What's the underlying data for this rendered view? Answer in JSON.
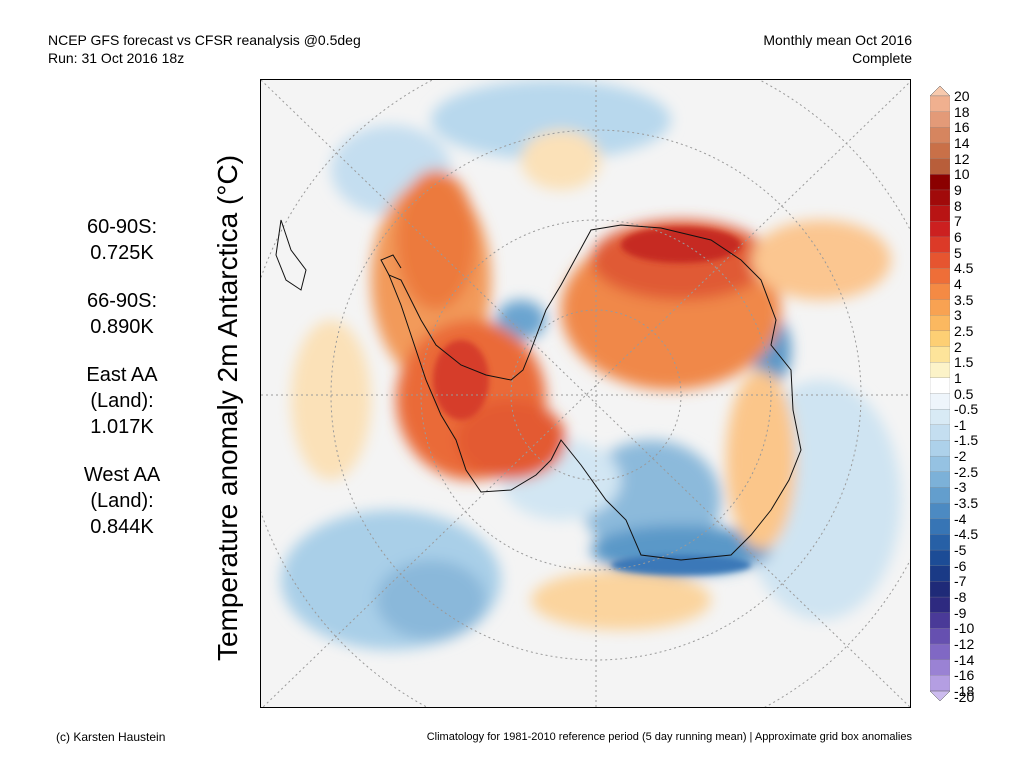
{
  "header": {
    "title": "NCEP GFS forecast vs CFSR reanalysis @0.5deg",
    "run": "Run: 31 Oct 2016 18z",
    "period": "Monthly mean Oct 2016",
    "status": "Complete"
  },
  "stats": [
    {
      "lines": [
        "60-90S:",
        "0.725K"
      ]
    },
    {
      "lines": [
        "66-90S:",
        "0.890K"
      ]
    },
    {
      "lines": [
        "East AA",
        "(Land):",
        "1.017K"
      ]
    },
    {
      "lines": [
        "West AA",
        "(Land):",
        "0.844K"
      ]
    }
  ],
  "map": {
    "ylabel": "Temperature anomaly 2m Antarctica (°C)",
    "projection": "south polar stereographic"
  },
  "colorbar": {
    "labels": [
      "20",
      "18",
      "16",
      "14",
      "12",
      "10",
      "9",
      "8",
      "7",
      "6",
      "5",
      "4.5",
      "4",
      "3.5",
      "3",
      "2.5",
      "2",
      "1.5",
      "1",
      "0.5",
      "-0.5",
      "-1",
      "-1.5",
      "-2",
      "-2.5",
      "-3",
      "-3.5",
      "-4",
      "-4.5",
      "-5",
      "-6",
      "-7",
      "-8",
      "-9",
      "-10",
      "-12",
      "-14",
      "-16",
      "-18",
      "-20"
    ],
    "colors": [
      "#f7c9ad",
      "#f0b08f",
      "#e39a78",
      "#d6855f",
      "#c97048",
      "#b85e3a",
      "#8b0000",
      "#a10a0a",
      "#b81414",
      "#cc2020",
      "#dc3a28",
      "#e65530",
      "#ee6e38",
      "#f48a44",
      "#f8a252",
      "#fbb860",
      "#fdcf74",
      "#fde49a",
      "#fcf3c8",
      "#ffffff",
      "#eef5fb",
      "#d8eaf5",
      "#c4def0",
      "#add1ea",
      "#95c2e2",
      "#7cb1d8",
      "#639ecd",
      "#4c8ac2",
      "#3775b5",
      "#2760a6",
      "#1c4c96",
      "#1a3a86",
      "#1f2a78",
      "#2e2a80",
      "#4a3a98",
      "#6650b0",
      "#8068c4",
      "#9a82d4",
      "#b49ee2",
      "#ccbbee"
    ]
  },
  "footer": {
    "left": "(c) Karsten Haustein",
    "right": "Climatology for 1981-2010 reference period (5 day running mean) | Approximate grid box anomalies"
  }
}
